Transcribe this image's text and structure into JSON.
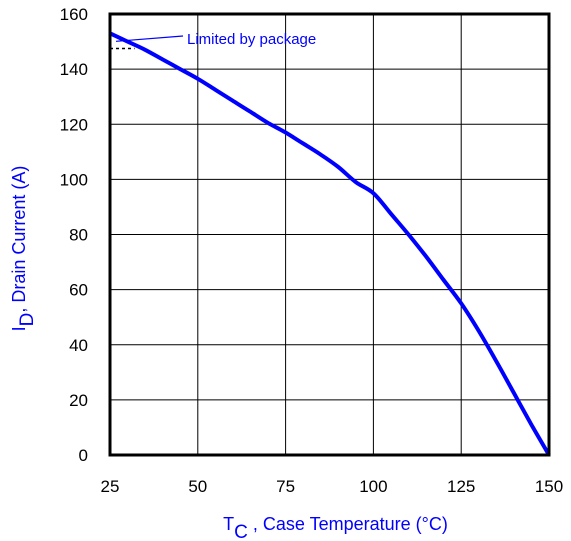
{
  "chart_data": {
    "type": "line",
    "title": "",
    "xlabel_main": "T",
    "xlabel_sub": "C",
    "xlabel_rest": " , Case Temperature (°C)",
    "ylabel_main": "I",
    "ylabel_sub": "D",
    "ylabel_rest": ",  Drain Current (A)",
    "xlim": [
      25,
      150
    ],
    "ylim": [
      0,
      160
    ],
    "xticks": [
      25,
      50,
      75,
      100,
      125,
      150
    ],
    "yticks": [
      0,
      20,
      40,
      60,
      80,
      100,
      120,
      140,
      160
    ],
    "grid": true,
    "series": [
      {
        "x": [
          25,
          30,
          35,
          40,
          45,
          50,
          55,
          60,
          65,
          70,
          75,
          80,
          85,
          90,
          95,
          100,
          105,
          110,
          115,
          120,
          125,
          130,
          135,
          140,
          145,
          150
        ],
        "y": [
          153,
          150,
          147,
          143.5,
          140,
          136.5,
          132.5,
          128.5,
          124.5,
          120.5,
          117,
          113,
          109,
          104.5,
          99,
          95,
          87.5,
          80,
          72,
          63.5,
          55,
          45,
          34,
          22.5,
          11,
          0
        ]
      }
    ],
    "annotation": {
      "text": "Limited by package",
      "dashed_y": 147.5,
      "dashed_x": [
        25,
        32
      ]
    }
  },
  "colors": {
    "curve": "#0000ff",
    "label": "#0000ff",
    "axis": "#000000",
    "grid": "#000000"
  }
}
